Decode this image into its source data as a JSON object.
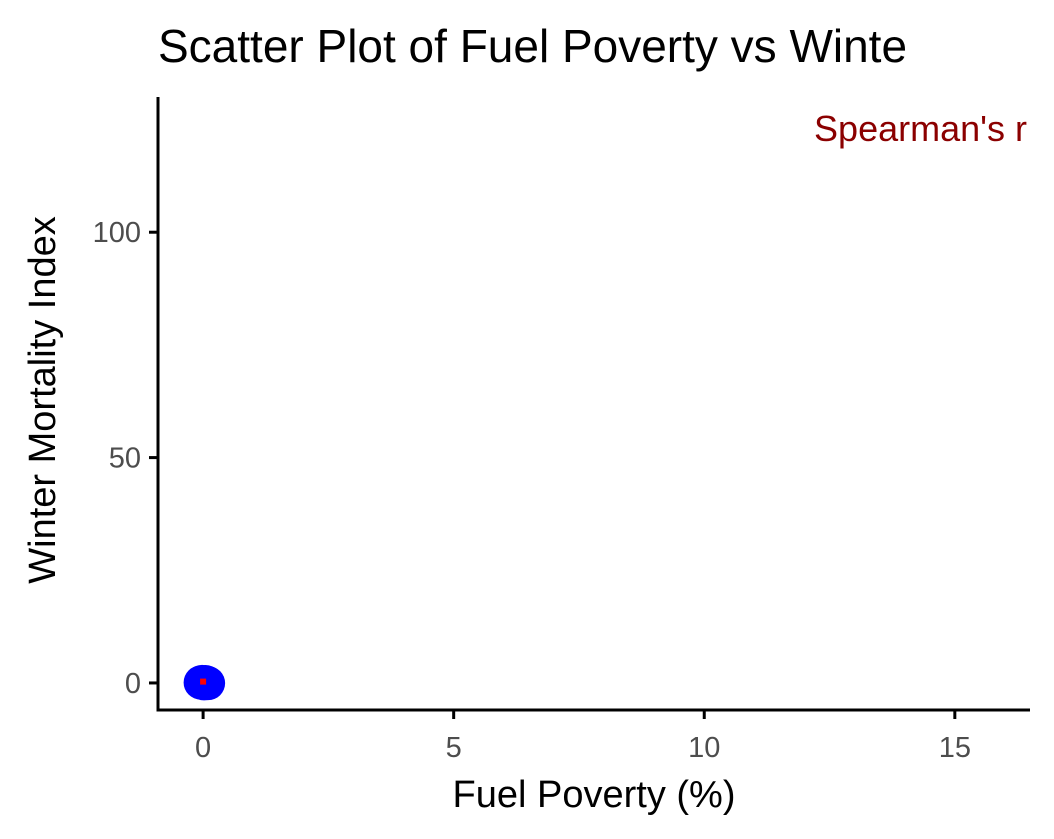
{
  "chart_data": {
    "type": "scatter",
    "title": "Scatter Plot of Fuel Poverty vs Winte",
    "xlabel": "Fuel Poverty (%)",
    "ylabel": "Winter Mortality Index",
    "xlim": [
      -0.9,
      16.5
    ],
    "ylim": [
      -6,
      130
    ],
    "x_ticks": [
      0,
      5,
      10,
      15
    ],
    "y_ticks": [
      0,
      50,
      100
    ],
    "x_tick_labels": [
      "0",
      "5",
      "10",
      "15"
    ],
    "y_tick_labels": [
      "0",
      "50",
      "100"
    ],
    "grid": false,
    "legend": "none",
    "annotation": {
      "text": "Spearman's r",
      "color": "#8b0000",
      "placement": "top-right"
    },
    "series": [
      {
        "color": "#0000ff",
        "points": [
          {
            "x": -0.05,
            "y": 0.1
          },
          {
            "x": 0.0,
            "y": 0.0
          },
          {
            "x": 0.05,
            "y": 0.2
          },
          {
            "x": 0.02,
            "y": -0.1
          },
          {
            "x": 0.08,
            "y": 0.05
          },
          {
            "x": -0.02,
            "y": 0.25
          },
          {
            "x": 0.1,
            "y": -0.05
          },
          {
            "x": 0.03,
            "y": 0.15
          }
        ]
      }
    ],
    "fit_marker": {
      "x": 0.0,
      "y": 0.3,
      "color": "#ff0000"
    }
  }
}
